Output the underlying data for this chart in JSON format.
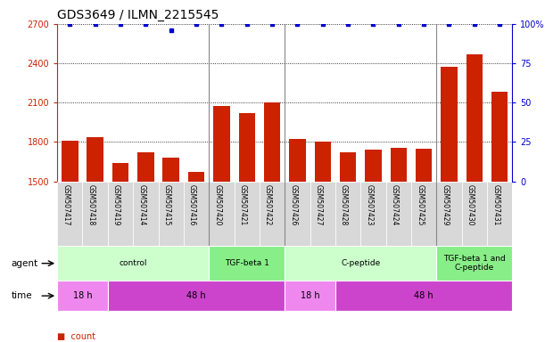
{
  "title": "GDS3649 / ILMN_2215545",
  "samples": [
    "GSM507417",
    "GSM507418",
    "GSM507419",
    "GSM507414",
    "GSM507415",
    "GSM507416",
    "GSM507420",
    "GSM507421",
    "GSM507422",
    "GSM507426",
    "GSM507427",
    "GSM507428",
    "GSM507423",
    "GSM507424",
    "GSM507425",
    "GSM507429",
    "GSM507430",
    "GSM507431"
  ],
  "counts": [
    1810,
    1835,
    1640,
    1720,
    1680,
    1570,
    2075,
    2020,
    2100,
    1820,
    1805,
    1720,
    1740,
    1755,
    1750,
    2370,
    2470,
    2180
  ],
  "percentile_ranks": [
    100,
    100,
    100,
    100,
    96,
    100,
    100,
    100,
    100,
    100,
    100,
    100,
    100,
    100,
    100,
    100,
    100,
    100
  ],
  "bar_color": "#cc2200",
  "dot_color": "#0000cc",
  "ylim_left": [
    1500,
    2700
  ],
  "ylim_right": [
    0,
    100
  ],
  "yticks_left": [
    1500,
    1800,
    2100,
    2400,
    2700
  ],
  "yticks_right": [
    0,
    25,
    50,
    75,
    100
  ],
  "agent_groups": [
    {
      "label": "control",
      "start": 0,
      "end": 6,
      "color": "#ccffcc"
    },
    {
      "label": "TGF-beta 1",
      "start": 6,
      "end": 9,
      "color": "#88ee88"
    },
    {
      "label": "C-peptide",
      "start": 9,
      "end": 15,
      "color": "#ccffcc"
    },
    {
      "label": "TGF-beta 1 and\nC-peptide",
      "start": 15,
      "end": 18,
      "color": "#88ee88"
    }
  ],
  "time_groups": [
    {
      "label": "18 h",
      "start": 0,
      "end": 2,
      "color": "#ee88ee"
    },
    {
      "label": "48 h",
      "start": 2,
      "end": 9,
      "color": "#cc44cc"
    },
    {
      "label": "18 h",
      "start": 9,
      "end": 11,
      "color": "#ee88ee"
    },
    {
      "label": "48 h",
      "start": 11,
      "end": 18,
      "color": "#cc44cc"
    }
  ],
  "bar_bottom": 1500,
  "tick_bg_color": "#d8d8d8",
  "spine_color": "#888888"
}
